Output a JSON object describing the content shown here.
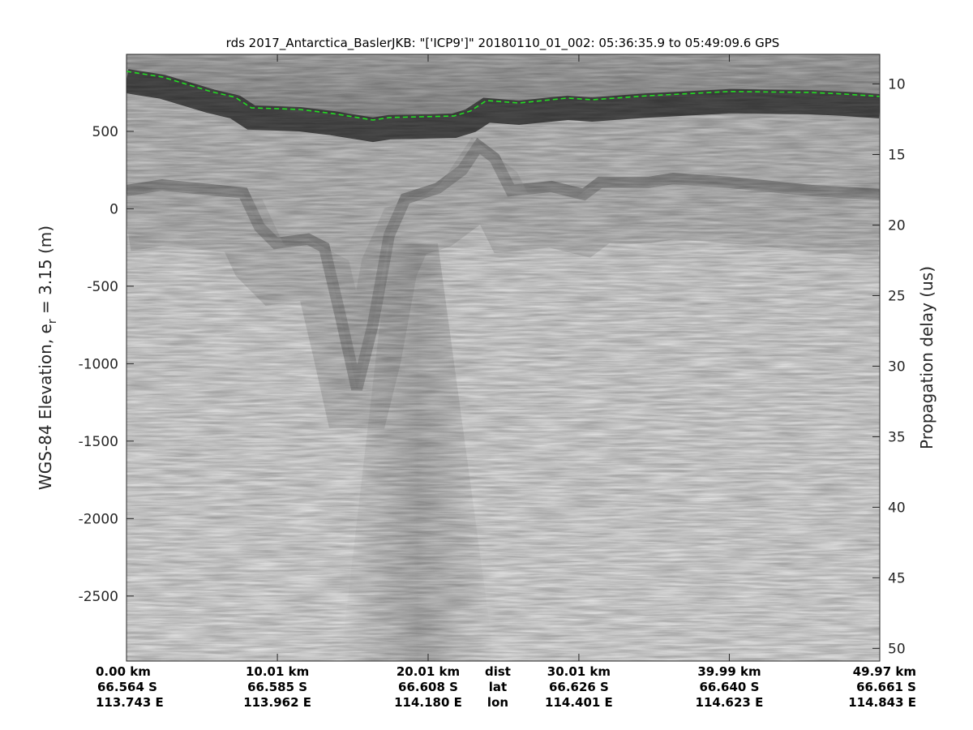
{
  "chart_data": {
    "type": "heatmap",
    "title": "rds 2017_Antarctica_BaslerJKB: \"['ICP9']\"  20180110_01_002: 05:36:35.9 to 05:49:09.6 GPS",
    "ylabel_left": {
      "main": "WGS-84 Elevation, e",
      "sub": "r",
      "tail": " = 3.15 (m)"
    },
    "ylabel_right": "Propagation delay (us)",
    "ylim_left": [
      -2920,
      997
    ],
    "ylim_right": [
      7.9,
      50.9
    ],
    "xlim_km": [
      0,
      49.97
    ],
    "left_ticks": [
      500,
      0,
      -500,
      -1000,
      -1500,
      -2000,
      -2500
    ],
    "right_ticks": [
      10,
      15,
      20,
      25,
      30,
      35,
      40,
      45,
      50
    ],
    "x_ticks": [
      {
        "km": 0.0,
        "dist": "0.00 km",
        "lat": "66.564 S",
        "lon": "113.743 E"
      },
      {
        "km": 10.01,
        "dist": "10.01 km",
        "lat": "66.585 S",
        "lon": "113.962 E"
      },
      {
        "km": 20.01,
        "dist": "20.01 km",
        "lat": "66.608 S",
        "lon": "114.180 E"
      },
      {
        "km": 30.01,
        "dist": "30.01 km",
        "lat": "66.626 S",
        "lon": "114.401 E"
      },
      {
        "km": 39.99,
        "dist": "39.99 km",
        "lat": "66.640 S",
        "lon": "114.623 E"
      },
      {
        "km": 49.97,
        "dist": "49.97 km",
        "lat": "66.661 S",
        "lon": "114.843 E"
      }
    ],
    "row_labels": {
      "dist": "dist",
      "lat": "lat",
      "lon": "lon"
    },
    "colormap": "gray",
    "series": [
      {
        "style": "green-dashed",
        "color": "#22dd22",
        "x": [
          0,
          2.37,
          5.59,
          7.21,
          8.28,
          11.51,
          13.66,
          16.35,
          17.43,
          21.73,
          22.81,
          23.88,
          26.03,
          29.26,
          30.88,
          34.64,
          40.02,
          45.4,
          47.55,
          49.97
        ],
        "values": [
          887,
          851,
          757,
          720,
          652,
          641,
          615,
          573,
          589,
          599,
          631,
          699,
          683,
          715,
          704,
          730,
          757,
          751,
          741,
          725
        ]
      },
      {
        "style": "bed-reflection",
        "x": [
          0,
          2.37,
          7.75,
          8.82,
          9.9,
          12.05,
          13.12,
          14.2,
          15.28,
          16.35,
          17.43,
          18.5,
          20.66,
          22.27,
          23.35,
          24.42,
          25.5,
          28.19,
          30.34,
          31.41,
          34.64,
          36.26,
          40.02,
          45.4,
          49.97
        ],
        "values": [
          118,
          154,
          102,
          -118,
          -223,
          -196,
          -249,
          -694,
          -1165,
          -746,
          -170,
          65,
          133,
          249,
          406,
          327,
          118,
          144,
          92,
          170,
          170,
          196,
          170,
          118,
          92
        ]
      }
    ]
  }
}
